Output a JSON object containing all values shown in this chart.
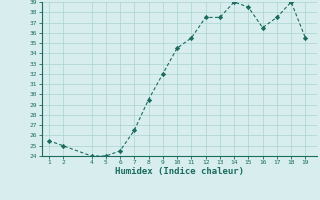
{
  "x": [
    1,
    2,
    4,
    5,
    6,
    7,
    8,
    9,
    10,
    11,
    12,
    13,
    14,
    15,
    16,
    17,
    18,
    19
  ],
  "y": [
    25.5,
    25.0,
    24.0,
    24.0,
    24.5,
    26.5,
    29.5,
    32.0,
    34.5,
    35.5,
    37.5,
    37.5,
    39.0,
    38.5,
    36.5,
    37.5,
    39.0,
    35.5
  ],
  "xlabel": "Humidex (Indice chaleur)",
  "ylim": [
    24,
    39
  ],
  "xlim": [
    0.5,
    19.8
  ],
  "yticks": [
    24,
    25,
    26,
    27,
    28,
    29,
    30,
    31,
    32,
    33,
    34,
    35,
    36,
    37,
    38,
    39
  ],
  "xticks": [
    1,
    2,
    4,
    5,
    6,
    7,
    8,
    9,
    10,
    11,
    12,
    13,
    14,
    15,
    16,
    17,
    18,
    19
  ],
  "line_color": "#1a6b5e",
  "marker": "D",
  "marker_size": 2.2,
  "bg_color": "#d8eeee",
  "grid_color": "#a8d4d0",
  "fig_bg": "#d8eeee"
}
